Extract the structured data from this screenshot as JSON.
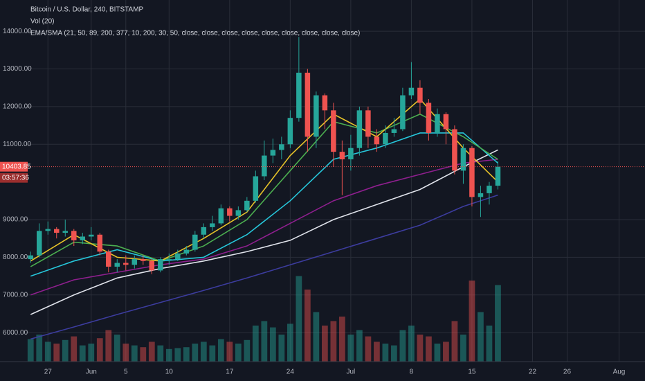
{
  "chart_data": {
    "type": "candlestick",
    "title": "Bitcoin / U.S. Dollar, 240, BITSTAMP",
    "volume_label": "Vol (20)",
    "indicator_label": "EMA/SMA (21, 50, 89, 200, 377, 10, 200, 30, 50, close, close, close, close, close, close, close, close, close)",
    "up_color": "#26a69a",
    "down_color": "#ef5350",
    "grid": true,
    "x": [
      145,
      146,
      147,
      148,
      149,
      150,
      151,
      152,
      153,
      154,
      155,
      156,
      157,
      158,
      159,
      160,
      161,
      162,
      163,
      164,
      165,
      166,
      167,
      168,
      169,
      170,
      171,
      172,
      173,
      174,
      175,
      176,
      177,
      178,
      179,
      180,
      181,
      182,
      183,
      184,
      185,
      186,
      187,
      188,
      189,
      190,
      191,
      192,
      193,
      194,
      195,
      196,
      197,
      198,
      199
    ],
    "open": [
      7950,
      8050,
      8700,
      8750,
      8650,
      8700,
      8450,
      8550,
      8600,
      8150,
      7750,
      7850,
      7800,
      7950,
      7900,
      7650,
      7950,
      7950,
      8100,
      8200,
      8600,
      8800,
      8900,
      9300,
      9100,
      9250,
      9500,
      10150,
      10700,
      10850,
      11000,
      11700,
      12900,
      11200,
      12300,
      11900,
      10800,
      10600,
      10900,
      11900,
      11200,
      11000,
      11300,
      11400,
      12300,
      12500,
      12100,
      11300,
      11800,
      11400,
      10300,
      10900,
      9600,
      9700,
      9900
    ],
    "high": [
      8150,
      8900,
      8950,
      8800,
      9000,
      8750,
      8650,
      8800,
      8650,
      8200,
      7950,
      8050,
      8050,
      8050,
      7950,
      8000,
      8100,
      8200,
      8300,
      8700,
      8900,
      9100,
      9400,
      9350,
      9350,
      9600,
      10300,
      11100,
      11150,
      11200,
      11900,
      13850,
      13000,
      12400,
      12350,
      12100,
      11100,
      11250,
      12000,
      12000,
      11400,
      11500,
      11700,
      12500,
      13180,
      12700,
      12200,
      11950,
      11850,
      11500,
      11000,
      10950,
      9900,
      10000,
      10550
    ],
    "low": [
      7850,
      8000,
      8600,
      8500,
      8550,
      8300,
      8350,
      8450,
      8050,
      7600,
      7600,
      7650,
      7700,
      7800,
      7550,
      7600,
      7800,
      7900,
      8050,
      8150,
      8500,
      8700,
      8850,
      8950,
      9000,
      9200,
      9450,
      10050,
      10500,
      10600,
      10900,
      11600,
      10800,
      10900,
      11400,
      10400,
      9650,
      10300,
      10700,
      10900,
      10800,
      10900,
      11200,
      11350,
      12200,
      11800,
      11100,
      11200,
      11000,
      10200,
      9950,
      9350,
      9070,
      9400,
      9800
    ],
    "close": [
      8050,
      8700,
      8750,
      8650,
      8700,
      8450,
      8550,
      8600,
      8150,
      7750,
      7850,
      7800,
      7950,
      7900,
      7650,
      7950,
      7950,
      8100,
      8200,
      8600,
      8800,
      8900,
      9300,
      9100,
      9250,
      9500,
      10150,
      10700,
      10850,
      11000,
      11700,
      12900,
      11200,
      12300,
      11900,
      10800,
      10600,
      10900,
      11900,
      11200,
      11000,
      11300,
      11400,
      12300,
      12500,
      12100,
      11300,
      11800,
      11400,
      10300,
      10900,
      9600,
      9700,
      9900,
      10403.85
    ],
    "volume": [
      25,
      30,
      22,
      20,
      24,
      28,
      18,
      20,
      26,
      35,
      30,
      20,
      18,
      16,
      22,
      18,
      14,
      15,
      16,
      20,
      22,
      18,
      25,
      22,
      20,
      24,
      40,
      45,
      38,
      30,
      42,
      95,
      80,
      55,
      40,
      45,
      50,
      30,
      35,
      28,
      22,
      20,
      18,
      35,
      40,
      30,
      28,
      20,
      22,
      45,
      30,
      90,
      55,
      40,
      85
    ],
    "volume_lim": [
      0,
      100
    ],
    "moving_averages": [
      {
        "color": "#3c3c9e",
        "x": [
          145,
          150,
          155,
          160,
          165,
          170,
          175,
          180,
          185,
          190,
          195,
          199
        ],
        "values": [
          5830,
          6150,
          6480,
          6800,
          7120,
          7450,
          7800,
          8150,
          8500,
          8850,
          9350,
          9650
        ]
      },
      {
        "color": "#e0e3eb",
        "x": [
          145,
          150,
          155,
          160,
          165,
          170,
          175,
          180,
          185,
          190,
          195,
          199
        ],
        "values": [
          6480,
          7000,
          7450,
          7700,
          7900,
          8150,
          8450,
          9000,
          9400,
          9800,
          10400,
          10850
        ]
      },
      {
        "color": "#8e1f8e",
        "x": [
          145,
          150,
          155,
          160,
          165,
          170,
          175,
          180,
          185,
          190,
          195,
          199
        ],
        "values": [
          7000,
          7400,
          7600,
          7800,
          7950,
          8300,
          8900,
          9500,
          9900,
          10200,
          10500,
          10600
        ]
      },
      {
        "color": "#26c6da",
        "x": [
          145,
          150,
          155,
          160,
          165,
          170,
          175,
          180,
          185,
          190,
          195,
          199
        ],
        "values": [
          7500,
          7900,
          8200,
          7900,
          8000,
          8600,
          9500,
          10600,
          10900,
          11300,
          11300,
          10500
        ]
      },
      {
        "color": "#4caf50",
        "x": [
          145,
          150,
          155,
          160,
          165,
          170,
          175,
          180,
          185,
          190,
          195,
          199
        ],
        "values": [
          7750,
          8400,
          8300,
          7900,
          8300,
          9000,
          10300,
          11600,
          11300,
          11800,
          11200,
          10600
        ]
      },
      {
        "color": "#e6c229",
        "x": [
          145,
          150,
          155,
          160,
          165,
          170,
          175,
          180,
          185,
          190,
          195,
          199
        ],
        "values": [
          7900,
          8600,
          8000,
          7900,
          8500,
          9200,
          10700,
          11800,
          11200,
          12200,
          10900,
          10000
        ]
      }
    ],
    "last_price": 10403.85,
    "countdown": "03:57:36",
    "ylim": [
      5230,
      14830
    ],
    "yticks": [
      {
        "value": 6000,
        "label": "6000.00"
      },
      {
        "value": 7000,
        "label": "7000.00"
      },
      {
        "value": 8000,
        "label": "8000.00"
      },
      {
        "value": 9000,
        "label": "9000.00"
      },
      {
        "value": 11000,
        "label": "11000.00"
      },
      {
        "value": 12000,
        "label": "12000.00"
      },
      {
        "value": 13000,
        "label": "13000.00"
      },
      {
        "value": 14000,
        "label": "14000.00"
      }
    ],
    "xlim": [
      144.5,
      216
    ],
    "xticks": [
      {
        "value": 147,
        "label": "27"
      },
      {
        "value": 152,
        "label": "Jun"
      },
      {
        "value": 156,
        "label": "5"
      },
      {
        "value": 161,
        "label": "10"
      },
      {
        "value": 168,
        "label": "17"
      },
      {
        "value": 175,
        "label": "24"
      },
      {
        "value": 182,
        "label": "Jul"
      },
      {
        "value": 189,
        "label": "8"
      },
      {
        "value": 196,
        "label": "15"
      },
      {
        "value": 203,
        "label": "22"
      },
      {
        "value": 207,
        "label": "26"
      },
      {
        "value": 213,
        "label": "Aug"
      }
    ]
  }
}
